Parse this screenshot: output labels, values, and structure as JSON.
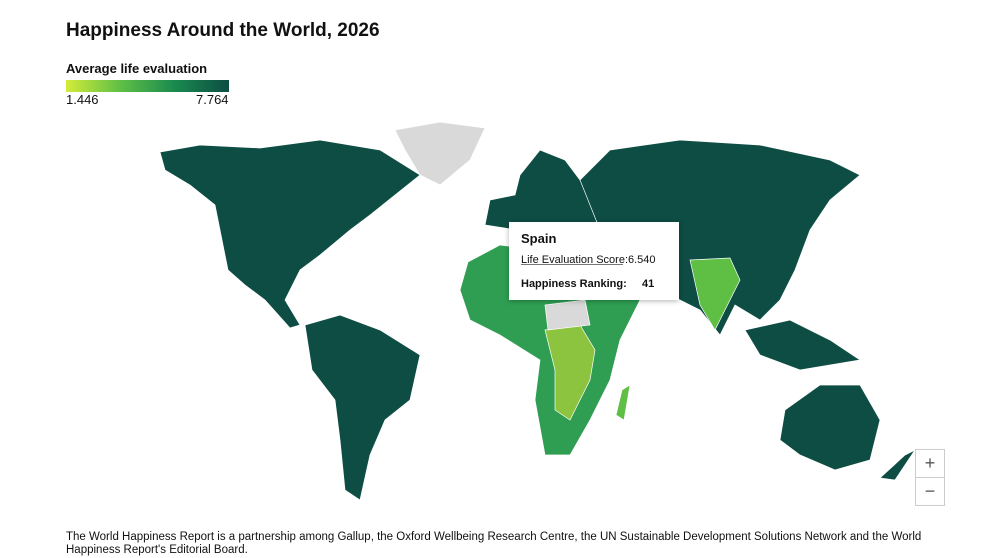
{
  "header": {
    "title": "Happiness Around the World, 2026"
  },
  "legend": {
    "title": "Average life evaluation",
    "min": 1.446,
    "max": 7.764
  },
  "tooltip": {
    "country": "Spain",
    "score_label": "Life Evaluation Score:",
    "score": {
      "value": 6.54,
      "label": "6.540"
    },
    "ranking_label": "Happiness Ranking:",
    "ranking": 41
  },
  "zoom": {
    "in": "+",
    "out": "−"
  },
  "footer": {
    "text": "The World Happiness Report is a partnership among Gallup, the Oxford Wellbeing Research Centre, the UN Sustainable Development Solutions Network and the World Happiness Report's Editorial Board."
  }
}
